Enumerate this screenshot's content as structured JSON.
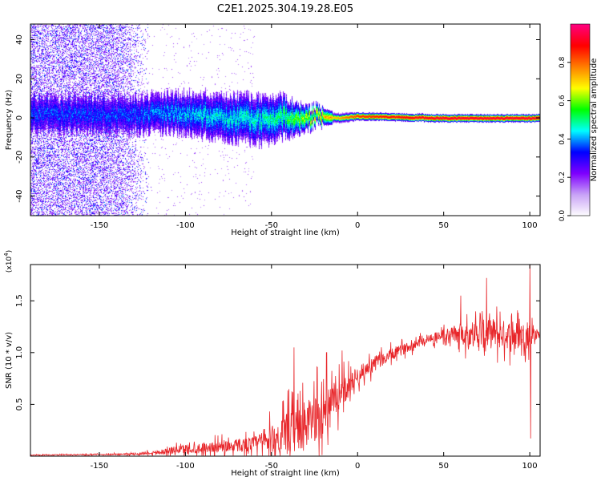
{
  "title": "C2E1.2025.304.19.28.E05",
  "chart_data": [
    {
      "type": "heatmap",
      "xlabel": "Height of straight line (km)",
      "ylabel": "Frequency (Hz)",
      "xlim": [
        -190,
        106
      ],
      "ylim": [
        -50,
        48
      ],
      "xticks": [
        -150,
        -100,
        -50,
        0,
        50,
        100
      ],
      "yticks": [
        -40,
        -20,
        0,
        20,
        40
      ],
      "colorbar": {
        "label": "Normalized spectral amplitude",
        "range": [
          0.0,
          1.0
        ],
        "ticks": [
          0.0,
          0.2,
          0.4,
          0.6,
          0.8
        ],
        "tick_labels": [
          "0.0",
          "0.2",
          "0.4",
          "0.6",
          "0.8"
        ],
        "colors": [
          "#ffffff",
          "#c9a4f7",
          "#7f00ff",
          "#0000ff",
          "#00ffff",
          "#00ff00",
          "#ffff00",
          "#ff8000",
          "#ff0000",
          "#ff0080"
        ]
      },
      "ridge": [
        {
          "x": -135,
          "y": 2,
          "width": 9,
          "amp": 0.22
        },
        {
          "x": -110,
          "y": 3,
          "width": 10,
          "amp": 0.28
        },
        {
          "x": -90,
          "y": 2,
          "width": 11,
          "amp": 0.32
        },
        {
          "x": -70,
          "y": 0,
          "width": 12,
          "amp": 0.34
        },
        {
          "x": -55,
          "y": -1,
          "width": 12,
          "amp": 0.36
        },
        {
          "x": -45,
          "y": 1,
          "width": 11,
          "amp": 0.4
        },
        {
          "x": -35,
          "y": 0,
          "width": 8,
          "amp": 0.5
        },
        {
          "x": -25,
          "y": 1,
          "width": 5,
          "amp": 0.6
        },
        {
          "x": -10,
          "y": 0,
          "width": 3,
          "amp": 0.75
        },
        {
          "x": 0,
          "y": 1,
          "width": 2,
          "amp": 0.85
        },
        {
          "x": 50,
          "y": 0,
          "width": 2,
          "amp": 0.95
        },
        {
          "x": 105,
          "y": 0,
          "width": 2,
          "amp": 0.95
        }
      ],
      "noise_region": {
        "x_from": -190,
        "x_to": -120,
        "amp": 0.25
      }
    },
    {
      "type": "line",
      "xlabel": "Height of straight line (km)",
      "ylabel": "SNR (10 * v/v)",
      "scale_label": "(x10",
      "scale_exponent": "4",
      "scale_close": ")",
      "xlim": [
        -190,
        106
      ],
      "ylim": [
        0,
        1.85
      ],
      "xticks": [
        -150,
        -100,
        -50,
        0,
        50,
        100
      ],
      "yticks": [
        0.5,
        1.0,
        1.5
      ],
      "ytick_labels": [
        "0.5",
        "1.0",
        "1.5"
      ],
      "series": [
        {
          "name": "SNR",
          "color": "#e8262a",
          "envelope": {
            "x": [
              -190,
              -150,
              -130,
              -115,
              -100,
              -80,
              -60,
              -50,
              -40,
              -30,
              -20,
              -10,
              0,
              10,
              20,
              30,
              40,
              50,
              60,
              70,
              80,
              90,
              100,
              106
            ],
            "base": [
              0.01,
              0.015,
              0.02,
              0.04,
              0.07,
              0.09,
              0.12,
              0.16,
              0.22,
              0.3,
              0.42,
              0.6,
              0.78,
              0.9,
              0.98,
              1.06,
              1.13,
              1.17,
              1.18,
              1.18,
              1.18,
              1.17,
              1.17,
              1.18
            ],
            "amp": [
              0.008,
              0.012,
              0.02,
              0.05,
              0.1,
              0.12,
              0.16,
              0.3,
              0.45,
              0.52,
              0.5,
              0.32,
              0.18,
              0.15,
              0.13,
              0.1,
              0.1,
              0.12,
              0.22,
              0.3,
              0.32,
              0.3,
              0.25,
              0.05
            ]
          },
          "spikes": [
            {
              "x": -37,
              "y": 1.05
            },
            {
              "x": -18,
              "y": 1.0
            },
            {
              "x": -9,
              "y": 1.02
            },
            {
              "x": 60,
              "y": 1.55
            },
            {
              "x": 75,
              "y": 1.72
            },
            {
              "x": 100,
              "y": 1.85
            },
            {
              "x": 100.5,
              "y": 0.17
            }
          ]
        }
      ]
    }
  ]
}
